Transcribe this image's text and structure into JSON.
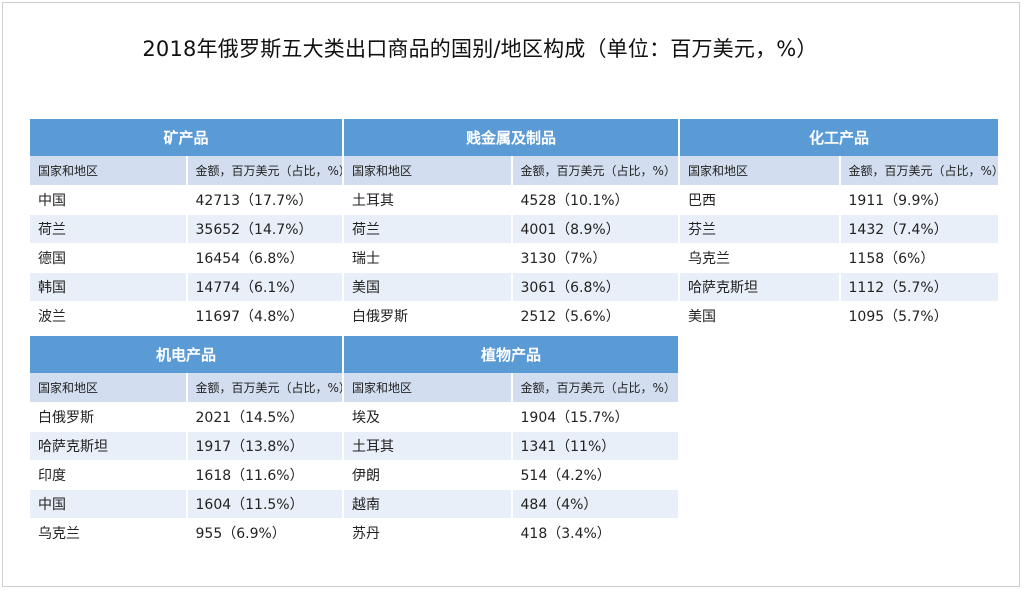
{
  "title": "2018年俄罗斯五大类出口商品的国别/地区构成（单位：百万美元，%）",
  "sub_header": {
    "col1": "国家和地区",
    "col2": "金额，百万美元（占比，%）"
  },
  "blocks": [
    {
      "name": "矿产品",
      "rows": [
        [
          "中国",
          "42713（17.7%）"
        ],
        [
          "荷兰",
          "35652（14.7%）"
        ],
        [
          "德国",
          "16454（6.8%）"
        ],
        [
          "韩国",
          "14774（6.1%）"
        ],
        [
          "波兰",
          "11697（4.8%）"
        ]
      ]
    },
    {
      "name": "贱金属及制品",
      "rows": [
        [
          "土耳其",
          "4528（10.1%）"
        ],
        [
          "荷兰",
          "4001（8.9%）"
        ],
        [
          "瑞士",
          "3130（7%）"
        ],
        [
          "美国",
          "3061（6.8%）"
        ],
        [
          "白俄罗斯",
          "2512（5.6%）"
        ]
      ]
    },
    {
      "name": "化工产品",
      "rows": [
        [
          "巴西",
          "1911（9.9%）"
        ],
        [
          "芬兰",
          "1432（7.4%）"
        ],
        [
          "乌克兰",
          "1158（6%）"
        ],
        [
          "哈萨克斯坦",
          "1112（5.7%）"
        ],
        [
          "美国",
          "1095（5.7%）"
        ]
      ]
    },
    {
      "name": "机电产品",
      "rows": [
        [
          "白俄罗斯",
          "2021（14.5%）"
        ],
        [
          "哈萨克斯坦",
          "1917（13.8%）"
        ],
        [
          "印度",
          "1618（11.6%）"
        ],
        [
          "中国",
          "1604（11.5%）"
        ],
        [
          "乌克兰",
          "955（6.9%）"
        ]
      ]
    },
    {
      "name": "植物产品",
      "rows": [
        [
          "埃及",
          "1904（15.7%）"
        ],
        [
          "土耳其",
          "1341（11%）"
        ],
        [
          "伊朗",
          "514（4.2%）"
        ],
        [
          "越南",
          "484（4%）"
        ],
        [
          "苏丹",
          "418（3.4%）"
        ]
      ]
    }
  ]
}
